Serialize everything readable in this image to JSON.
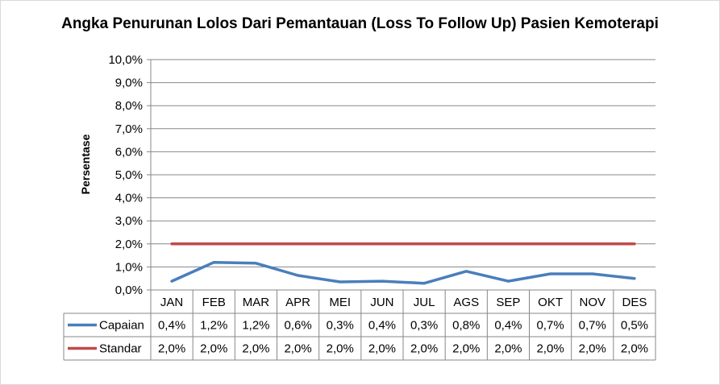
{
  "chart_data": {
    "type": "line",
    "title": "Angka Penurunan Lolos Dari Pemantauan (Loss To Follow Up) Pasien Kemoterapi",
    "ylabel": "Persentase",
    "xlabel": "",
    "ylim": [
      0,
      10
    ],
    "yticks": [
      "0,0%",
      "1,0%",
      "2,0%",
      "3,0%",
      "4,0%",
      "5,0%",
      "6,0%",
      "7,0%",
      "8,0%",
      "9,0%",
      "10,0%"
    ],
    "categories": [
      "JAN",
      "FEB",
      "MAR",
      "APR",
      "MEI",
      "JUN",
      "JUL",
      "AGS",
      "SEP",
      "OKT",
      "NOV",
      "DES"
    ],
    "grid": true,
    "legend": "data-table",
    "series": [
      {
        "name": "Capaian",
        "color": "#4a7ebb",
        "values": [
          0.38,
          1.2,
          1.16,
          0.63,
          0.35,
          0.38,
          0.29,
          0.81,
          0.38,
          0.7,
          0.7,
          0.5
        ],
        "labels": [
          "0,4%",
          "1,2%",
          "1,2%",
          "0,6%",
          "0,3%",
          "0,4%",
          "0,3%",
          "0,8%",
          "0,4%",
          "0,7%",
          "0,7%",
          "0,5%"
        ]
      },
      {
        "name": "Standar",
        "color": "#be4b48",
        "values": [
          2,
          2,
          2,
          2,
          2,
          2,
          2,
          2,
          2,
          2,
          2,
          2
        ],
        "labels": [
          "2,0%",
          "2,0%",
          "2,0%",
          "2,0%",
          "2,0%",
          "2,0%",
          "2,0%",
          "2,0%",
          "2,0%",
          "2,0%",
          "2,0%",
          "2,0%"
        ]
      }
    ]
  }
}
